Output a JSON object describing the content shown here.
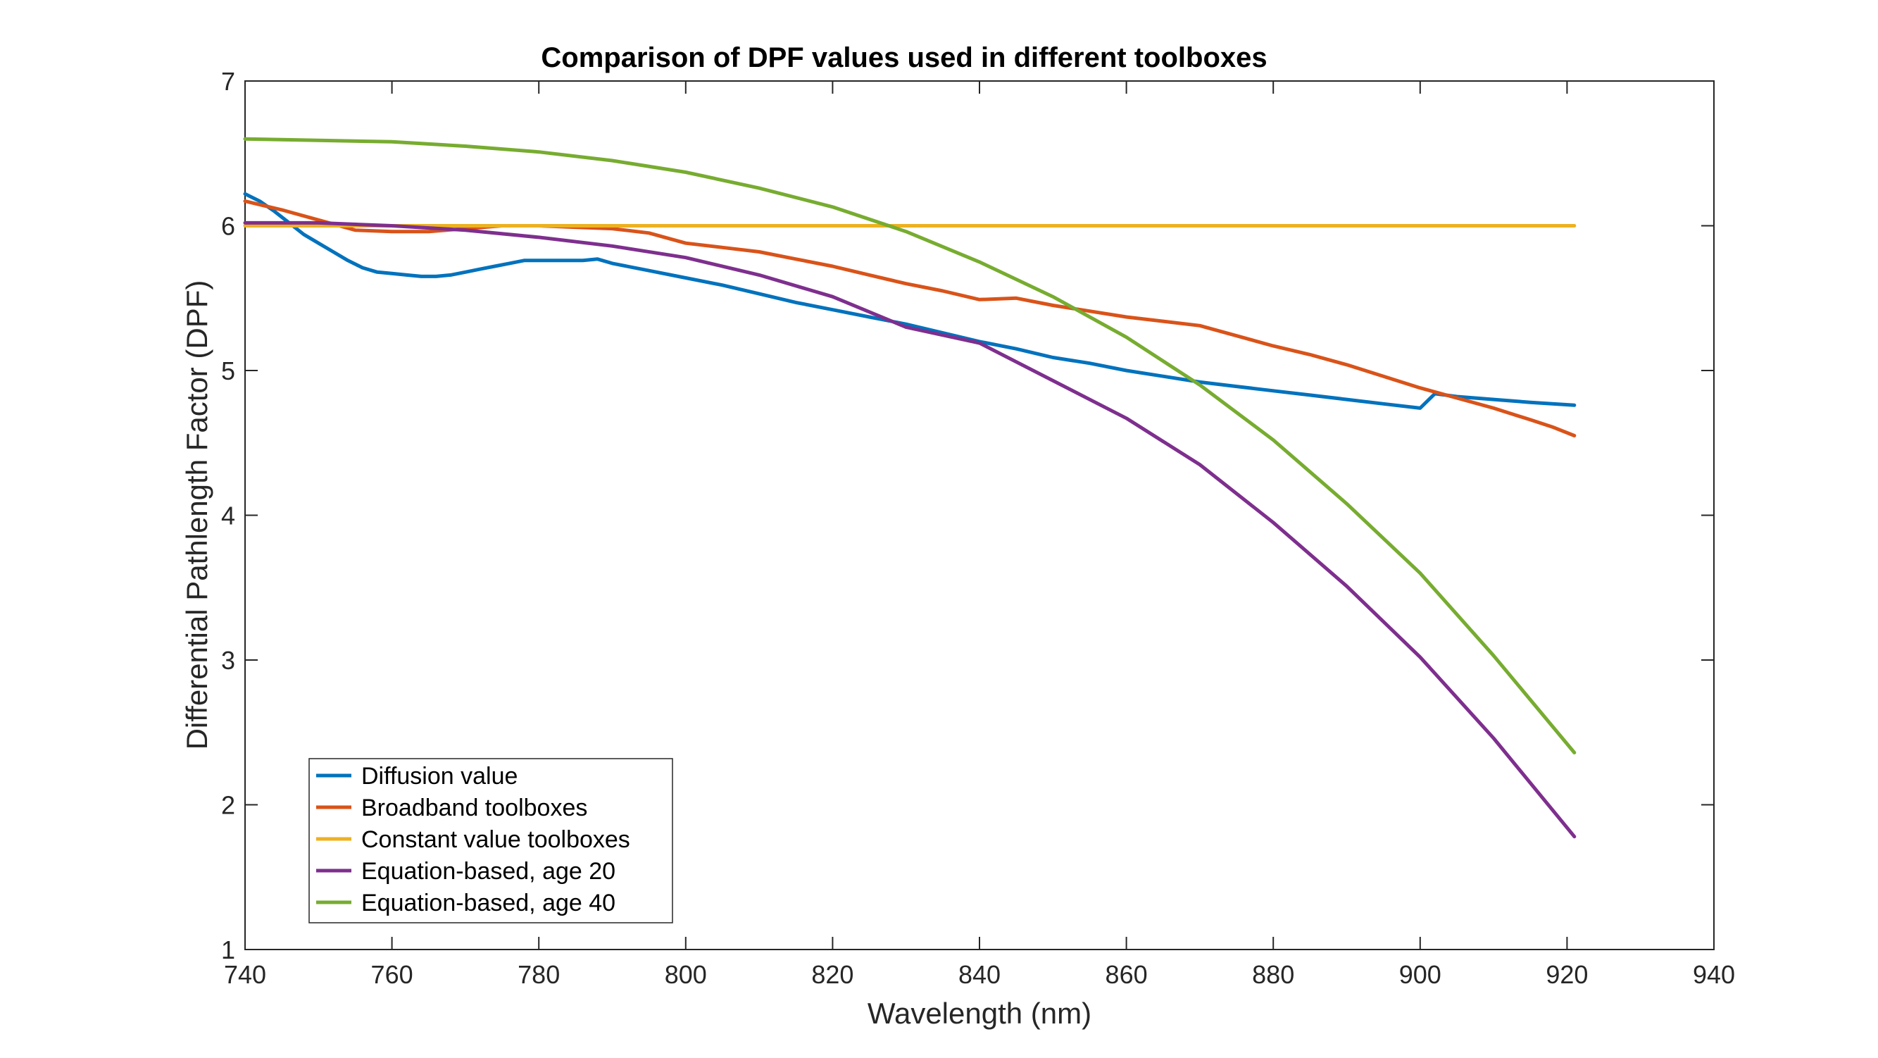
{
  "chart_data": {
    "type": "line",
    "title": "Comparison of DPF values used in different toolboxes",
    "xlabel": "Wavelength (nm)",
    "ylabel": "Differential Pathlength Factor (DPF)",
    "xlim": [
      740,
      940
    ],
    "ylim": [
      1,
      7
    ],
    "xticks": [
      740,
      760,
      780,
      800,
      820,
      840,
      860,
      880,
      900,
      920,
      940
    ],
    "yticks": [
      1,
      2,
      3,
      4,
      5,
      6,
      7
    ],
    "grid": false,
    "legend_position": "bottom-left",
    "series": [
      {
        "name": "Diffusion value",
        "color": "#0072BD",
        "x": [
          740,
          742,
          744,
          746,
          748,
          750,
          752,
          754,
          756,
          758,
          760,
          762,
          764,
          766,
          768,
          770,
          772,
          774,
          776,
          778,
          780,
          782,
          784,
          786,
          788,
          790,
          795,
          800,
          805,
          810,
          815,
          820,
          825,
          830,
          835,
          840,
          845,
          850,
          855,
          860,
          865,
          870,
          875,
          880,
          885,
          890,
          895,
          900,
          902,
          905,
          910,
          915,
          921
        ],
        "y": [
          6.22,
          6.17,
          6.1,
          6.02,
          5.94,
          5.88,
          5.82,
          5.76,
          5.71,
          5.68,
          5.67,
          5.66,
          5.65,
          5.65,
          5.66,
          5.68,
          5.7,
          5.72,
          5.74,
          5.76,
          5.76,
          5.76,
          5.76,
          5.76,
          5.77,
          5.74,
          5.69,
          5.64,
          5.59,
          5.53,
          5.47,
          5.42,
          5.37,
          5.32,
          5.26,
          5.2,
          5.15,
          5.09,
          5.05,
          5.0,
          4.96,
          4.92,
          4.89,
          4.86,
          4.83,
          4.8,
          4.77,
          4.74,
          4.84,
          4.82,
          4.8,
          4.78,
          4.76
        ]
      },
      {
        "name": "Broadband toolboxes",
        "color": "#D95319",
        "x": [
          740,
          745,
          750,
          755,
          760,
          765,
          770,
          775,
          780,
          785,
          790,
          795,
          800,
          805,
          810,
          815,
          820,
          825,
          830,
          835,
          840,
          845,
          850,
          855,
          860,
          865,
          870,
          875,
          880,
          885,
          890,
          895,
          900,
          905,
          910,
          915,
          918,
          921
        ],
        "y": [
          6.17,
          6.11,
          6.04,
          5.97,
          5.96,
          5.96,
          5.98,
          6.0,
          6.0,
          5.99,
          5.98,
          5.95,
          5.88,
          5.85,
          5.82,
          5.77,
          5.72,
          5.66,
          5.6,
          5.55,
          5.49,
          5.5,
          5.45,
          5.41,
          5.37,
          5.34,
          5.31,
          5.24,
          5.17,
          5.11,
          5.04,
          4.96,
          4.88,
          4.81,
          4.74,
          4.66,
          4.61,
          4.55
        ]
      },
      {
        "name": "Constant value toolboxes",
        "color": "#EDB120",
        "x": [
          740,
          921
        ],
        "y": [
          6.0,
          6.0
        ]
      },
      {
        "name": "Equation-based, age 20",
        "color": "#7E2F8E",
        "x": [
          740,
          750,
          760,
          770,
          780,
          790,
          800,
          810,
          820,
          830,
          840,
          850,
          860,
          870,
          880,
          890,
          900,
          910,
          921
        ],
        "y": [
          6.02,
          6.02,
          6.0,
          5.97,
          5.92,
          5.86,
          5.78,
          5.66,
          5.51,
          5.3,
          5.19,
          4.93,
          4.67,
          4.35,
          3.95,
          3.51,
          3.02,
          2.46,
          1.78
        ]
      },
      {
        "name": "Equation-based, age 40",
        "color": "#77AC30",
        "x": [
          740,
          750,
          760,
          770,
          780,
          790,
          800,
          810,
          820,
          830,
          840,
          850,
          860,
          870,
          880,
          890,
          900,
          910,
          921
        ],
        "y": [
          6.6,
          6.59,
          6.58,
          6.55,
          6.51,
          6.45,
          6.37,
          6.26,
          6.13,
          5.96,
          5.75,
          5.51,
          5.23,
          4.9,
          4.52,
          4.08,
          3.6,
          3.03,
          2.36
        ]
      }
    ]
  }
}
